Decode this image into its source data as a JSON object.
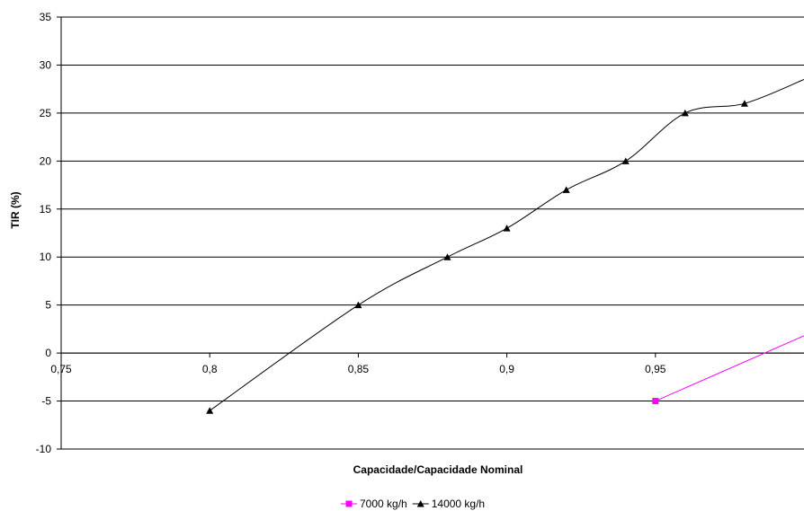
{
  "chart_data": {
    "type": "line",
    "title": "",
    "xlabel": "Capacidade/Capacidade Nominal",
    "ylabel": "TIR (%)",
    "xlim": [
      0.75,
      1.0
    ],
    "ylim": [
      -10,
      35
    ],
    "x_ticks": [
      0.75,
      0.8,
      0.85,
      0.9,
      0.95
    ],
    "x_tick_labels": [
      "0,75",
      "0,8",
      "0,85",
      "0,9",
      "0,95"
    ],
    "y_ticks": [
      -10,
      -5,
      0,
      5,
      10,
      15,
      20,
      25,
      30,
      35
    ],
    "y_tick_labels": [
      "-10",
      "-5",
      "0",
      "5",
      "10",
      "15",
      "20",
      "25",
      "30",
      "35"
    ],
    "grid": "horizontal",
    "legend_position": "bottom",
    "series": [
      {
        "name": "7000 kg/h",
        "color": "#ff00ff",
        "marker": "square",
        "x": [
          0.95,
          1.0
        ],
        "y": [
          -5,
          1.8
        ]
      },
      {
        "name": "14000 kg/h",
        "color": "#000000",
        "marker": "triangle",
        "x": [
          0.8,
          0.85,
          0.88,
          0.9,
          0.92,
          0.94,
          0.96,
          0.98,
          1.0
        ],
        "y": [
          -6,
          5,
          10,
          13,
          17,
          20,
          25,
          26,
          28.5
        ]
      }
    ]
  }
}
